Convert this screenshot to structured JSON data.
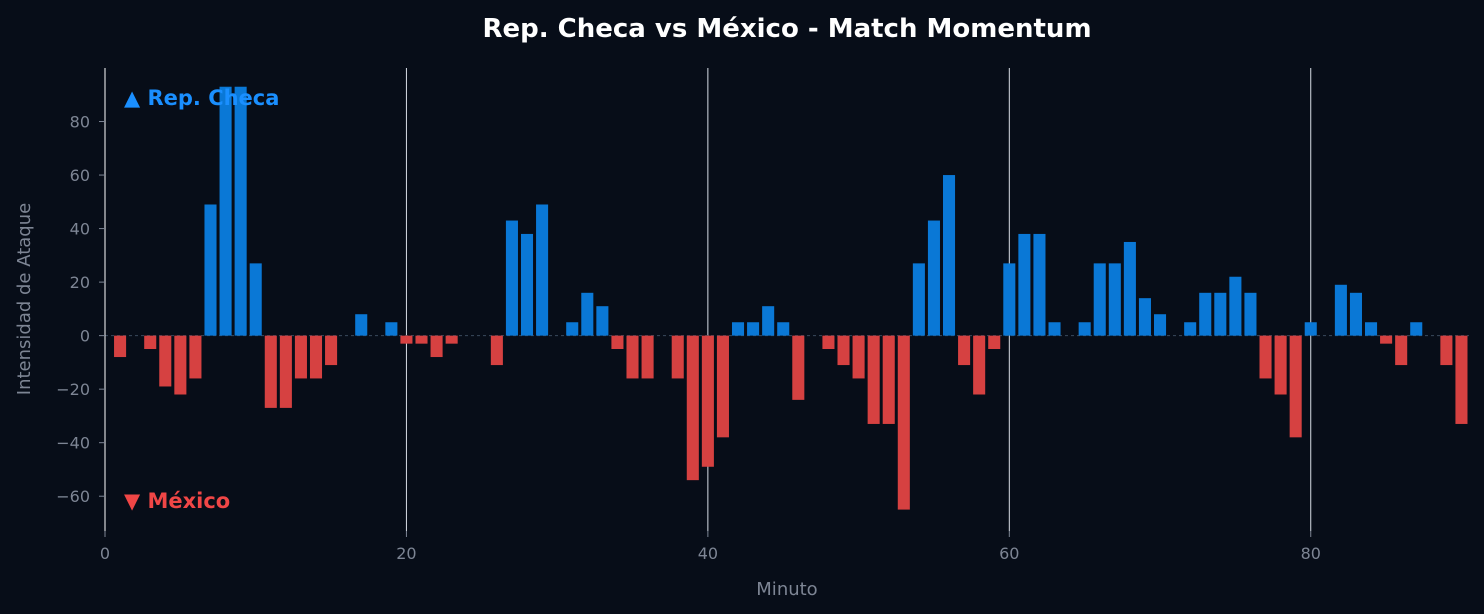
{
  "chart_data": {
    "type": "bar",
    "title": "Rep. Checa vs México - Match Momentum",
    "xlabel": "Minuto",
    "ylabel": "Intensidad de Ataque",
    "xlim": [
      0,
      90.5
    ],
    "ylim": [
      -73,
      100
    ],
    "x_ticks": [
      0,
      20,
      40,
      60,
      80
    ],
    "y_ticks": [
      -60,
      -40,
      -20,
      0,
      20,
      40,
      60,
      80
    ],
    "vertical_lines": [
      20,
      40,
      60,
      80
    ],
    "grid": false,
    "legend": {
      "positive": "▲ Rep. Checa",
      "negative": "▼ México",
      "placement_positive": "top-left",
      "placement_negative": "bottom-left"
    },
    "colors": {
      "positive": "#0a78d6",
      "negative": "#d64141",
      "background": "#070d18"
    },
    "minutes": [
      1,
      2,
      3,
      4,
      5,
      6,
      7,
      8,
      9,
      10,
      11,
      12,
      13,
      14,
      15,
      16,
      17,
      18,
      19,
      20,
      21,
      22,
      23,
      24,
      25,
      26,
      27,
      28,
      29,
      30,
      31,
      32,
      33,
      34,
      35,
      36,
      37,
      38,
      39,
      40,
      41,
      42,
      43,
      44,
      45,
      46,
      47,
      48,
      49,
      50,
      51,
      52,
      53,
      54,
      55,
      56,
      57,
      58,
      59,
      60,
      61,
      62,
      63,
      64,
      65,
      66,
      67,
      68,
      69,
      70,
      71,
      72,
      73,
      74,
      75,
      76,
      77,
      78,
      79,
      80,
      81,
      82,
      83,
      84,
      85,
      86,
      87,
      88,
      89,
      90
    ],
    "values": [
      -8,
      0,
      -5,
      -19,
      -22,
      -16,
      49,
      93,
      93,
      27,
      -27,
      -27,
      -16,
      -16,
      -11,
      0,
      8,
      0,
      5,
      -3,
      -3,
      -8,
      -3,
      0,
      0,
      -11,
      43,
      38,
      49,
      0,
      5,
      16,
      11,
      -5,
      -16,
      -16,
      0,
      -16,
      -54,
      -49,
      -38,
      5,
      5,
      11,
      5,
      -24,
      0,
      -5,
      -11,
      -16,
      -33,
      -33,
      -65,
      27,
      43,
      60,
      -11,
      -22,
      -5,
      27,
      38,
      38,
      5,
      0,
      5,
      27,
      27,
      35,
      14,
      8,
      0,
      5,
      16,
      16,
      22,
      16,
      -16,
      -22,
      -38,
      5,
      0,
      19,
      16,
      5,
      -3,
      -11,
      5,
      0,
      -11,
      -33
    ]
  }
}
